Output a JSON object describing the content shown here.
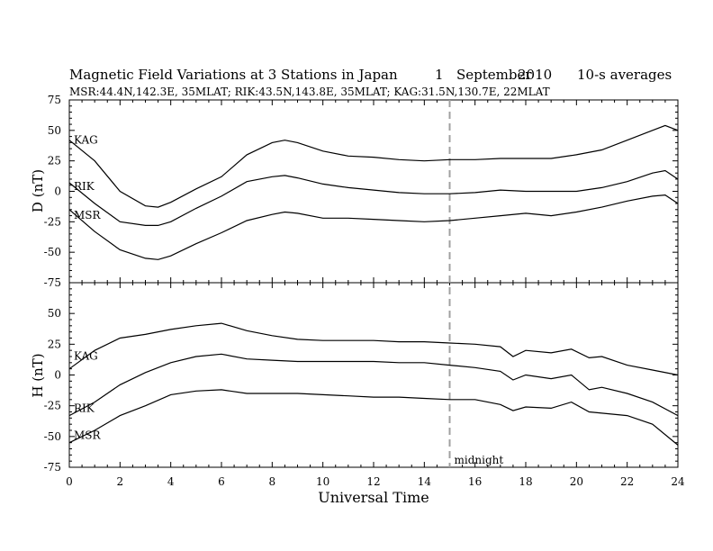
{
  "header": {
    "title": "Magnetic Field Variations at 3 Stations in Japan",
    "day": "1",
    "month": "September",
    "year": "2010",
    "averaging": "10-s averages",
    "stations": "MSR:44.4N,142.3E, 35MLAT;  RIK:43.5N,143.8E, 35MLAT;  KAG:31.5N,130.7E, 22MLAT"
  },
  "annotation": {
    "midnight_label": "midnight",
    "midnight_ut": 15
  },
  "colors": {
    "line": "#000000",
    "marker": "#a0a0a0"
  },
  "chart_data": [
    {
      "type": "line",
      "panel": "D",
      "ylabel": "D (nT)",
      "ylim": [
        -75,
        75
      ],
      "yticks": [
        -75,
        -50,
        -25,
        0,
        25,
        50,
        75
      ],
      "xlim": [
        0,
        24
      ],
      "xticks": [
        0,
        2,
        4,
        6,
        8,
        10,
        12,
        14,
        16,
        18,
        20,
        22,
        24
      ],
      "x": [
        0,
        1,
        2,
        3,
        3.5,
        4,
        5,
        6,
        7,
        8,
        8.5,
        9,
        10,
        11,
        12,
        13,
        14,
        15,
        16,
        17,
        18,
        19,
        20,
        21,
        22,
        23,
        23.5,
        24
      ],
      "series": [
        {
          "name": "KAG",
          "values": [
            42,
            25,
            0,
            -12,
            -13,
            -9,
            2,
            12,
            30,
            40,
            42,
            40,
            33,
            29,
            28,
            26,
            25,
            26,
            26,
            27,
            27,
            27,
            30,
            34,
            42,
            50,
            54,
            50
          ]
        },
        {
          "name": "RIK",
          "values": [
            7,
            -10,
            -25,
            -28,
            -28,
            -25,
            -14,
            -4,
            8,
            12,
            13,
            11,
            6,
            3,
            1,
            -1,
            -2,
            -2,
            -1,
            1,
            0,
            0,
            0,
            3,
            8,
            15,
            17,
            10
          ]
        },
        {
          "name": "MSR",
          "values": [
            -15,
            -33,
            -48,
            -55,
            -56,
            -53,
            -43,
            -34,
            -24,
            -19,
            -17,
            -18,
            -22,
            -22,
            -23,
            -24,
            -25,
            -24,
            -22,
            -20,
            -18,
            -20,
            -17,
            -13,
            -8,
            -4,
            -3,
            -10
          ]
        }
      ]
    },
    {
      "type": "line",
      "panel": "H",
      "ylabel": "H (nT)",
      "xlabel": "Universal Time",
      "ylim": [
        -75,
        75
      ],
      "yticks": [
        -75,
        -50,
        -25,
        0,
        25,
        50,
        75
      ],
      "xlim": [
        0,
        24
      ],
      "xticks": [
        0,
        2,
        4,
        6,
        8,
        10,
        12,
        14,
        16,
        18,
        20,
        22,
        24
      ],
      "x": [
        0,
        1,
        2,
        3,
        4,
        5,
        6,
        7,
        8,
        9,
        10,
        11,
        12,
        13,
        14,
        15,
        16,
        17,
        17.5,
        18,
        19,
        19.8,
        20.5,
        21,
        22,
        23,
        24
      ],
      "series": [
        {
          "name": "KAG",
          "values": [
            5,
            20,
            30,
            33,
            37,
            40,
            42,
            36,
            32,
            29,
            28,
            28,
            28,
            27,
            27,
            26,
            25,
            23,
            15,
            20,
            18,
            21,
            14,
            15,
            8,
            4,
            0
          ]
        },
        {
          "name": "RIK",
          "values": [
            -33,
            -22,
            -8,
            2,
            10,
            15,
            17,
            13,
            12,
            11,
            11,
            11,
            11,
            10,
            10,
            8,
            6,
            3,
            -4,
            0,
            -3,
            0,
            -12,
            -10,
            -15,
            -22,
            -33
          ]
        },
        {
          "name": "MSR",
          "values": [
            -55,
            -45,
            -33,
            -25,
            -16,
            -13,
            -12,
            -15,
            -15,
            -15,
            -16,
            -17,
            -18,
            -18,
            -19,
            -20,
            -20,
            -24,
            -29,
            -26,
            -27,
            -22,
            -30,
            -31,
            -33,
            -40,
            -57
          ]
        }
      ]
    }
  ]
}
